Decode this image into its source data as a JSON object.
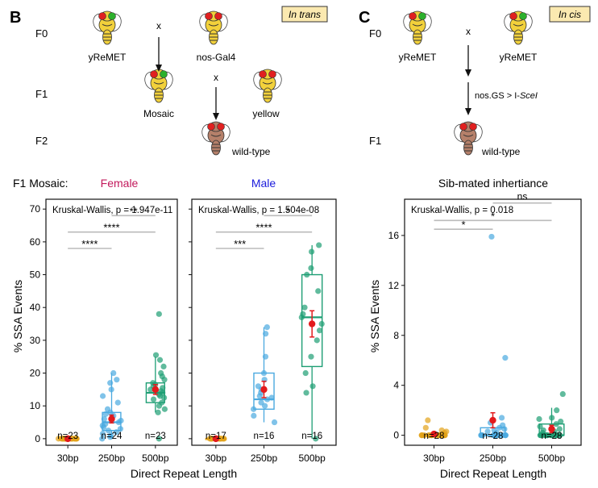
{
  "panel_b": {
    "letter": "B",
    "badge": "In trans",
    "generations": [
      "F0",
      "F1",
      "F2"
    ],
    "cross_mark": "x",
    "fly_labels": {
      "f0_left": "yReMET",
      "f0_right": "nos-Gal4",
      "f1_left": "Mosaic",
      "f1_right": "yellow",
      "f2": "wild-type"
    }
  },
  "panel_c": {
    "letter": "C",
    "badge": "In cis",
    "generations": [
      "F0",
      "F1"
    ],
    "cross_mark": "x",
    "arrow_label": "nos.GS > I-",
    "arrow_label_italic": "SceI",
    "fly_labels": {
      "f0_left": "yReMET",
      "f0_right": "yReMET",
      "f1": "wild-type"
    }
  },
  "row_label": "F1 Mosaic:",
  "colors": {
    "c30": "#e3a21a",
    "c250": "#4aa9e0",
    "c500": "#1e9e74",
    "mean": "#e31a1c",
    "female": "#c2185b",
    "male": "#1a1adb",
    "badge_fill": "#fbe9b0",
    "sig_line": "#bbbbbb",
    "fly_yellow": "#f2d13b",
    "fly_brown": "#b5806a",
    "eye_red": "#e02020",
    "eye_green": "#2cb02c"
  },
  "chart_data": [
    {
      "type": "box",
      "title": "Female",
      "ylabel": "% SSA Events",
      "xlabel": "Direct Repeat Length",
      "ylim": [
        -2,
        73
      ],
      "yticks": [
        0,
        10,
        20,
        30,
        40,
        50,
        60,
        70
      ],
      "stat_text": "Kruskal-Wallis, p = 1.947e-11",
      "categories": [
        "30bp",
        "250bp",
        "500bp"
      ],
      "n_labels": [
        "n=23",
        "n=24",
        "n=23"
      ],
      "series": [
        {
          "category": "30bp",
          "q1": 0,
          "median": 0,
          "q3": 0,
          "whisker_low": 0,
          "whisker_high": 0,
          "mean": 0,
          "mean_err": 0.2,
          "points": [
            0,
            0,
            0,
            0,
            0,
            0,
            0,
            0,
            0,
            0,
            0,
            0,
            0,
            0,
            0,
            0,
            0,
            0,
            0,
            0,
            0,
            0,
            0
          ]
        },
        {
          "category": "250bp",
          "q1": 2.5,
          "median": 5.0,
          "q3": 8.0,
          "whisker_low": 0,
          "whisker_high": 20,
          "mean": 6.0,
          "mean_err": 1.2,
          "points": [
            0,
            0.5,
            1,
            1.5,
            2,
            2.5,
            3,
            3.5,
            4,
            4.5,
            5,
            5.5,
            6,
            6.5,
            7,
            7.5,
            8,
            9,
            11,
            13,
            15,
            17,
            18,
            20
          ]
        },
        {
          "category": "500bp",
          "q1": 11,
          "median": 14,
          "q3": 17,
          "whisker_low": 8,
          "whisker_high": 25,
          "mean": 15.0,
          "mean_err": 1.5,
          "points": [
            0,
            8,
            9,
            10,
            11,
            12,
            12.5,
            13,
            13.5,
            14,
            14.5,
            15,
            15.5,
            16,
            16.5,
            17,
            18,
            19,
            20,
            22,
            24,
            25.5,
            38
          ]
        }
      ],
      "significance": [
        {
          "from": "30bp",
          "to": "250bp",
          "y": 58,
          "label": "****"
        },
        {
          "from": "30bp",
          "to": "500bp",
          "y": 63,
          "label": "****"
        },
        {
          "from": "250bp",
          "to": "500bp",
          "y": 68,
          "label": "**"
        }
      ]
    },
    {
      "type": "box",
      "title": "Male",
      "ylim": [
        -2,
        73
      ],
      "stat_text": "Kruskal-Wallis, p = 1.504e-08",
      "categories": [
        "30bp",
        "250bp",
        "500bp"
      ],
      "n_labels": [
        "n=17",
        "n=16",
        "n=16"
      ],
      "series": [
        {
          "category": "30bp",
          "q1": 0,
          "median": 0,
          "q3": 0,
          "whisker_low": 0,
          "whisker_high": 0,
          "mean": 0,
          "mean_err": 0.2,
          "points": [
            0,
            0,
            0,
            0,
            0,
            0,
            0,
            0,
            0,
            0,
            0,
            0,
            0,
            0,
            0,
            0,
            0
          ]
        },
        {
          "category": "250bp",
          "q1": 9,
          "median": 12,
          "q3": 20,
          "whisker_low": 5,
          "whisker_high": 34,
          "mean": 15.0,
          "mean_err": 2.5,
          "points": [
            5,
            7,
            9,
            10,
            11,
            12,
            12.5,
            13,
            14,
            15,
            16,
            18,
            20,
            25,
            32,
            34
          ]
        },
        {
          "category": "500bp",
          "q1": 22,
          "median": 37,
          "q3": 50,
          "whisker_low": 0,
          "whisker_high": 59,
          "mean": 35.0,
          "mean_err": 4.0,
          "points": [
            0,
            14,
            16,
            20,
            25,
            30,
            33,
            35,
            37,
            38,
            40,
            45,
            50,
            52,
            57,
            59
          ]
        }
      ],
      "significance": [
        {
          "from": "30bp",
          "to": "250bp",
          "y": 58,
          "label": "***"
        },
        {
          "from": "30bp",
          "to": "500bp",
          "y": 63,
          "label": "****"
        },
        {
          "from": "250bp",
          "to": "500bp",
          "y": 68,
          "label": "*"
        }
      ]
    },
    {
      "type": "box",
      "title": "Sib-mated inhertiance",
      "ylabel": "% SSA Events",
      "xlabel": "Direct Repeat Length",
      "ylim": [
        -0.8,
        18.9
      ],
      "yticks": [
        0,
        4,
        8,
        12,
        16
      ],
      "stat_text": "Kruskal-Wallis, p = 0.018",
      "categories": [
        "30bp",
        "250bp",
        "500bp"
      ],
      "n_labels": [
        "n=28",
        "n=28",
        "n=28"
      ],
      "series": [
        {
          "category": "30bp",
          "q1": 0,
          "median": 0,
          "q3": 0,
          "whisker_low": 0,
          "whisker_high": 0,
          "mean": 0.1,
          "mean_err": 0.1,
          "points": [
            0,
            0,
            0,
            0,
            0,
            0,
            0,
            0,
            0,
            0,
            0,
            0,
            0,
            0,
            0,
            0,
            0,
            0,
            0,
            0,
            0,
            0,
            0.1,
            0.2,
            0.4,
            0.6,
            1.2,
            0.3
          ]
        },
        {
          "category": "250bp",
          "q1": 0,
          "median": 0,
          "q3": 0.6,
          "whisker_low": 0,
          "whisker_high": 1.5,
          "mean": 1.2,
          "mean_err": 0.6,
          "points": [
            0,
            0,
            0,
            0,
            0,
            0,
            0,
            0,
            0,
            0,
            0,
            0,
            0,
            0,
            0,
            0,
            0,
            0.1,
            0.2,
            0.3,
            0.4,
            0.5,
            0.6,
            0.8,
            1.0,
            1.4,
            6.2,
            15.9
          ]
        },
        {
          "category": "500bp",
          "q1": 0,
          "median": 0,
          "q3": 0.9,
          "whisker_low": 0,
          "whisker_high": 2.2,
          "mean": 0.5,
          "mean_err": 0.3,
          "points": [
            0,
            0,
            0,
            0,
            0,
            0,
            0,
            0,
            0,
            0,
            0,
            0,
            0,
            0,
            0,
            0,
            0.1,
            0.2,
            0.3,
            0.4,
            0.5,
            0.7,
            0.9,
            1.1,
            1.3,
            1.4,
            2.0,
            3.3
          ]
        }
      ],
      "significance": [
        {
          "from": "30bp",
          "to": "250bp",
          "y": 16.5,
          "label": "*"
        },
        {
          "from": "30bp",
          "to": "500bp",
          "y": 17.2,
          "label": "*"
        },
        {
          "from": "250bp",
          "to": "500bp",
          "y": 18.6,
          "label": "ns"
        }
      ]
    }
  ]
}
